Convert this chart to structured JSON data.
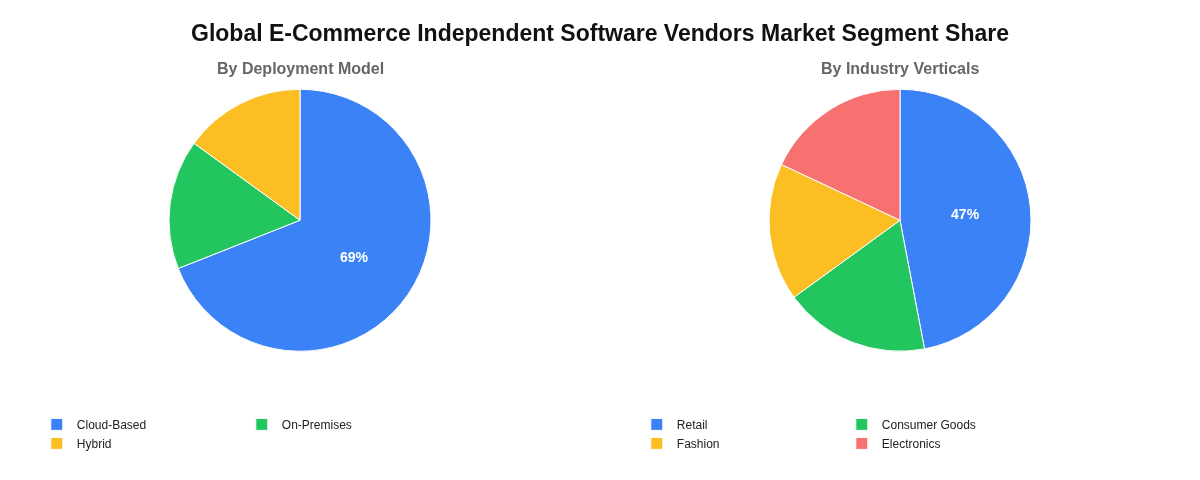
{
  "chart_data": [
    {
      "type": "pie",
      "title": "Global E-Commerce Independent Software Vendors Market Segment Share",
      "subtitle": "By Deployment Model",
      "categories": [
        "Cloud-Based",
        "On-Premises",
        "Hybrid"
      ],
      "values": [
        69,
        16,
        15
      ],
      "colors": [
        "#3b82f6",
        "#22c55e",
        "#fbbf24"
      ],
      "value_labels": [
        "69%",
        null,
        null
      ],
      "legend": "bottom"
    },
    {
      "type": "pie",
      "subtitle": "By Industry Verticals",
      "categories": [
        "Retail",
        "Consumer Goods",
        "Fashion",
        "Electronics"
      ],
      "values": [
        47,
        18,
        17,
        18
      ],
      "colors": [
        "#3b82f6",
        "#22c55e",
        "#fbbf24",
        "#f87171"
      ],
      "value_labels": [
        "47%",
        null,
        null,
        null
      ],
      "legend": "bottom"
    }
  ]
}
